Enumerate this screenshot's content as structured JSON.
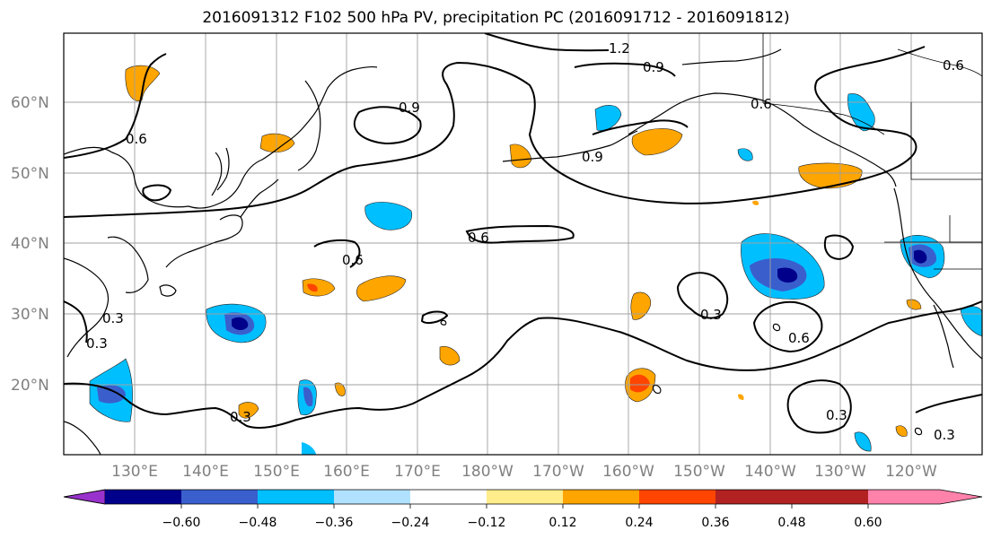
{
  "title": "2016091312 F102 500 hPa PV, precipitation PC (2016091712 - 2016091812)",
  "lat_labels": [
    "60°N",
    "50°N",
    "40°N",
    "30°N",
    "20°N"
  ],
  "lon_labels": [
    "130°E",
    "140°E",
    "150°E",
    "160°E",
    "170°E",
    "180°W",
    "170°W",
    "160°W",
    "150°W",
    "140°W",
    "130°W",
    "120°W"
  ],
  "colorbar": {
    "tick_labels": [
      "−0.60",
      "−0.48",
      "−0.36",
      "−0.24",
      "−0.12",
      "0.12",
      "0.24",
      "0.36",
      "0.48",
      "0.60"
    ],
    "colors": [
      "#9932cc",
      "#00008b",
      "#3a5fcd",
      "#00bfff",
      "#b0e2ff",
      "#ffffff",
      "#ffec8b",
      "#ffa500",
      "#ff4500",
      "#b22222",
      "#ff82ab"
    ]
  },
  "contour_labels": [
    "1.2",
    "0.9",
    "0.9",
    "0.9",
    "0.6",
    "0.6",
    "0.6",
    "0.6",
    "0.6",
    "0.6",
    "0.3",
    "0.3",
    "0.3",
    "0.3",
    "0.3",
    "0.3"
  ]
}
